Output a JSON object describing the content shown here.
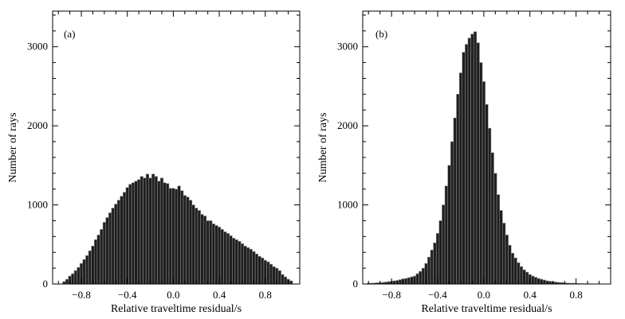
{
  "chart_data": [
    {
      "type": "bar",
      "panel_label": "(a)",
      "xlabel": "Relative traveltime residual/s",
      "ylabel": "Number of rays",
      "xlim": [
        -1.05,
        1.1
      ],
      "ylim": [
        0,
        3450
      ],
      "xticks": [
        -0.8,
        -0.4,
        0.0,
        0.4,
        0.8
      ],
      "xtick_labels": [
        "−0.8",
        "−0.4",
        "0.0",
        "0.4",
        "0.8"
      ],
      "yticks": [
        0,
        1000,
        2000,
        3000
      ],
      "ytick_labels": [
        "0",
        "1000",
        "2000",
        "3000"
      ],
      "bin_width": 0.025,
      "x": [
        -0.95,
        -0.925,
        -0.9,
        -0.875,
        -0.85,
        -0.825,
        -0.8,
        -0.775,
        -0.75,
        -0.725,
        -0.7,
        -0.675,
        -0.65,
        -0.625,
        -0.6,
        -0.575,
        -0.55,
        -0.525,
        -0.5,
        -0.475,
        -0.45,
        -0.425,
        -0.4,
        -0.375,
        -0.35,
        -0.325,
        -0.3,
        -0.275,
        -0.25,
        -0.225,
        -0.2,
        -0.175,
        -0.15,
        -0.125,
        -0.1,
        -0.075,
        -0.05,
        -0.025,
        0.0,
        0.025,
        0.05,
        0.075,
        0.1,
        0.125,
        0.15,
        0.175,
        0.2,
        0.225,
        0.25,
        0.275,
        0.3,
        0.325,
        0.35,
        0.375,
        0.4,
        0.425,
        0.45,
        0.475,
        0.5,
        0.525,
        0.55,
        0.575,
        0.6,
        0.625,
        0.65,
        0.675,
        0.7,
        0.725,
        0.75,
        0.775,
        0.8,
        0.825,
        0.85,
        0.875,
        0.9,
        0.925,
        0.95,
        0.975,
        1.0,
        1.025
      ],
      "values": [
        30,
        60,
        100,
        130,
        170,
        210,
        260,
        310,
        360,
        420,
        480,
        560,
        620,
        690,
        780,
        840,
        900,
        960,
        1010,
        1060,
        1110,
        1160,
        1220,
        1260,
        1280,
        1300,
        1320,
        1360,
        1340,
        1390,
        1340,
        1390,
        1360,
        1300,
        1340,
        1280,
        1270,
        1210,
        1210,
        1200,
        1240,
        1180,
        1120,
        1100,
        1060,
        1000,
        960,
        930,
        880,
        860,
        800,
        800,
        760,
        740,
        720,
        690,
        660,
        640,
        610,
        580,
        560,
        540,
        510,
        480,
        460,
        440,
        410,
        380,
        350,
        330,
        300,
        280,
        250,
        220,
        200,
        170,
        120,
        90,
        60,
        40
      ]
    },
    {
      "type": "bar",
      "panel_label": "(b)",
      "xlabel": "Relative traveltime residual/s",
      "ylabel": "Number of rays",
      "xlim": [
        -1.05,
        1.1
      ],
      "ylim": [
        0,
        3450
      ],
      "xticks": [
        -0.8,
        -0.4,
        0.0,
        0.4,
        0.8
      ],
      "xtick_labels": [
        "−0.8",
        "−0.4",
        "0.0",
        "0.4",
        "0.8"
      ],
      "yticks": [
        0,
        1000,
        2000,
        3000
      ],
      "ytick_labels": [
        "0",
        "1000",
        "2000",
        "3000"
      ],
      "bin_width": 0.025,
      "x": [
        -1.0,
        -0.975,
        -0.95,
        -0.925,
        -0.9,
        -0.875,
        -0.85,
        -0.825,
        -0.8,
        -0.775,
        -0.75,
        -0.725,
        -0.7,
        -0.675,
        -0.65,
        -0.625,
        -0.6,
        -0.575,
        -0.55,
        -0.525,
        -0.5,
        -0.475,
        -0.45,
        -0.425,
        -0.4,
        -0.375,
        -0.35,
        -0.325,
        -0.3,
        -0.275,
        -0.25,
        -0.225,
        -0.2,
        -0.175,
        -0.15,
        -0.125,
        -0.1,
        -0.075,
        -0.05,
        -0.025,
        0.0,
        0.025,
        0.05,
        0.075,
        0.1,
        0.125,
        0.15,
        0.175,
        0.2,
        0.225,
        0.25,
        0.275,
        0.3,
        0.325,
        0.35,
        0.375,
        0.4,
        0.425,
        0.45,
        0.475,
        0.5,
        0.525,
        0.55,
        0.575,
        0.6,
        0.625,
        0.65,
        0.675,
        0.7,
        0.725,
        0.75,
        0.775,
        0.8,
        0.825,
        0.85,
        0.875,
        0.9,
        0.925,
        0.95,
        0.975,
        1.0
      ],
      "values": [
        10,
        10,
        12,
        15,
        18,
        20,
        25,
        30,
        35,
        40,
        45,
        55,
        65,
        70,
        80,
        90,
        100,
        130,
        160,
        200,
        260,
        340,
        430,
        520,
        640,
        800,
        1000,
        1240,
        1500,
        1800,
        2100,
        2400,
        2670,
        2930,
        3030,
        3110,
        3160,
        3190,
        3050,
        2800,
        2560,
        2270,
        1970,
        1660,
        1400,
        1130,
        930,
        770,
        620,
        490,
        390,
        330,
        270,
        220,
        180,
        150,
        120,
        100,
        85,
        70,
        60,
        50,
        40,
        35,
        30,
        25,
        20,
        18,
        15,
        12,
        10,
        10,
        8,
        6,
        5,
        4,
        3,
        3,
        2,
        2,
        2
      ]
    }
  ]
}
